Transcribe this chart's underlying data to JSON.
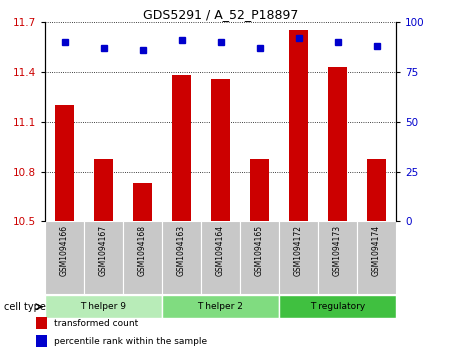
{
  "title": "GDS5291 / A_52_P18897",
  "samples": [
    "GSM1094166",
    "GSM1094167",
    "GSM1094168",
    "GSM1094163",
    "GSM1094164",
    "GSM1094165",
    "GSM1094172",
    "GSM1094173",
    "GSM1094174"
  ],
  "transformed_counts": [
    11.2,
    10.875,
    10.73,
    11.38,
    11.355,
    10.875,
    11.65,
    11.43,
    10.875
  ],
  "percentile_ranks": [
    90,
    87,
    86,
    91,
    90,
    87,
    92,
    90,
    88
  ],
  "ylim_left": [
    10.5,
    11.7
  ],
  "ylim_right": [
    0,
    100
  ],
  "yticks_left": [
    10.5,
    10.8,
    11.1,
    11.4,
    11.7
  ],
  "yticks_right": [
    0,
    25,
    50,
    75,
    100
  ],
  "cell_groups": [
    {
      "label": "T helper 9",
      "indices": [
        0,
        1,
        2
      ],
      "color": "#b8ecb8"
    },
    {
      "label": "T helper 2",
      "indices": [
        3,
        4,
        5
      ],
      "color": "#80dc80"
    },
    {
      "label": "T regulatory",
      "indices": [
        6,
        7,
        8
      ],
      "color": "#40c040"
    }
  ],
  "bar_color": "#cc0000",
  "dot_color": "#0000cc",
  "bar_width": 0.5,
  "grid_color": "#000000",
  "background_color": "#ffffff",
  "tick_label_color_left": "#cc0000",
  "tick_label_color_right": "#0000cc",
  "legend_items": [
    {
      "label": "transformed count",
      "color": "#cc0000"
    },
    {
      "label": "percentile rank within the sample",
      "color": "#0000cc"
    }
  ],
  "cell_type_label": "cell type",
  "sample_bg_color": "#c8c8c8"
}
